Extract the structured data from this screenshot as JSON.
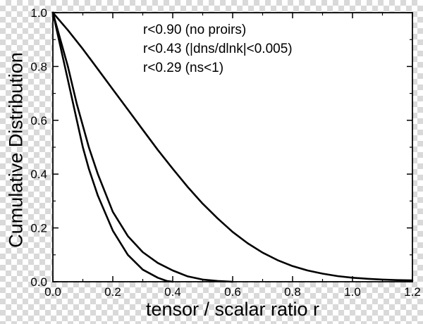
{
  "chart_data": {
    "type": "line",
    "title": "",
    "xlabel": "tensor / scalar ratio r",
    "ylabel": "Cumulative Distribution",
    "xlim": [
      0.0,
      1.2
    ],
    "ylim": [
      0.0,
      1.0
    ],
    "x_ticks": [
      "0.0",
      "0.2",
      "0.4",
      "0.6",
      "0.8",
      "1.0",
      "1.2"
    ],
    "y_ticks": [
      "0.0",
      "0.2",
      "0.4",
      "0.6",
      "0.8",
      "1.0"
    ],
    "grid": false,
    "legend_placement": "top-right",
    "line_color": "#000000",
    "annotations": [
      "r<0.90 (no proirs)",
      "r<0.43 (|dns/dlnk|<0.005)",
      "r<0.29 (ns<1)"
    ],
    "series": [
      {
        "x": [
          0.0,
          0.05,
          0.1,
          0.15,
          0.2,
          0.25,
          0.3,
          0.35,
          0.4,
          0.45,
          0.5,
          0.55,
          0.6,
          0.65,
          0.7,
          0.75,
          0.8,
          0.85,
          0.9,
          0.95,
          1.0,
          1.05,
          1.1,
          1.15,
          1.2
        ],
        "y": [
          1.0,
          0.935,
          0.865,
          0.79,
          0.715,
          0.64,
          0.565,
          0.49,
          0.42,
          0.352,
          0.29,
          0.235,
          0.185,
          0.143,
          0.108,
          0.08,
          0.058,
          0.042,
          0.03,
          0.021,
          0.015,
          0.011,
          0.008,
          0.006,
          0.005
        ]
      },
      {
        "x": [
          0.0,
          0.02,
          0.05,
          0.08,
          0.1,
          0.12,
          0.15,
          0.2,
          0.25,
          0.3,
          0.35,
          0.4,
          0.45,
          0.5,
          0.55,
          0.6
        ],
        "y": [
          1.0,
          0.92,
          0.8,
          0.66,
          0.58,
          0.5,
          0.4,
          0.26,
          0.17,
          0.11,
          0.07,
          0.042,
          0.02,
          0.008,
          0.003,
          0.0
        ]
      },
      {
        "x": [
          0.0,
          0.02,
          0.05,
          0.08,
          0.1,
          0.12,
          0.15,
          0.2,
          0.25,
          0.3,
          0.35,
          0.38,
          0.4
        ],
        "y": [
          1.0,
          0.9,
          0.75,
          0.6,
          0.5,
          0.42,
          0.32,
          0.19,
          0.1,
          0.045,
          0.015,
          0.003,
          0.0
        ]
      }
    ]
  }
}
